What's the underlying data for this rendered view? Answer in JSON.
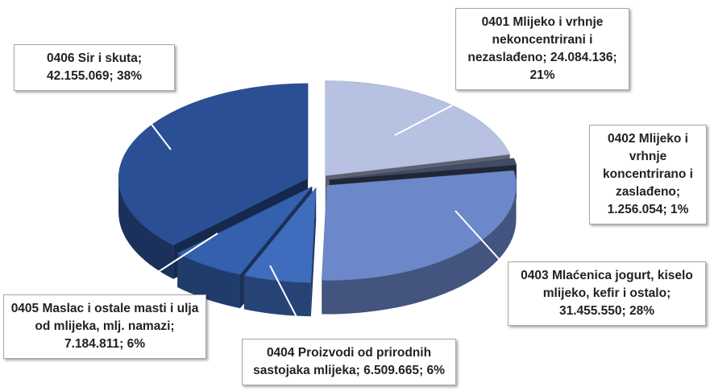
{
  "chart_data": {
    "type": "pie",
    "categories": [
      "0401 Mlijeko i vrhnje nekoncentrirani i nezaslađeno",
      "0402 Mlijeko i vrhnje koncentrirano i zaslađeno",
      "0403 Mlaćenica jogurt, kiselo mlijeko, kefir i ostalo",
      "0404 Proizvodi od prirodnih sastojaka mlijeka",
      "0405 Maslac i ostale masti i ulja od mlijeka, mlj. namazi",
      "0406 Sir i skuta"
    ],
    "values": [
      24084136,
      1256054,
      31455550,
      6509665,
      7184811,
      42155069
    ],
    "value_labels": [
      "24.084.136",
      "1.256.054",
      "31.455.550",
      "6.509.665",
      "7.184.811",
      "42.155.069"
    ],
    "percentages": [
      21,
      1,
      28,
      6,
      6,
      38
    ],
    "percentage_labels": [
      "21%",
      "1%",
      "28%",
      "6%",
      "6%",
      "38%"
    ],
    "label_separator": "; ",
    "colors": [
      "#b7c2e2",
      "#414c68",
      "#6c88cb",
      "#3f6cbd",
      "#3460ad",
      "#2b4f95"
    ]
  }
}
